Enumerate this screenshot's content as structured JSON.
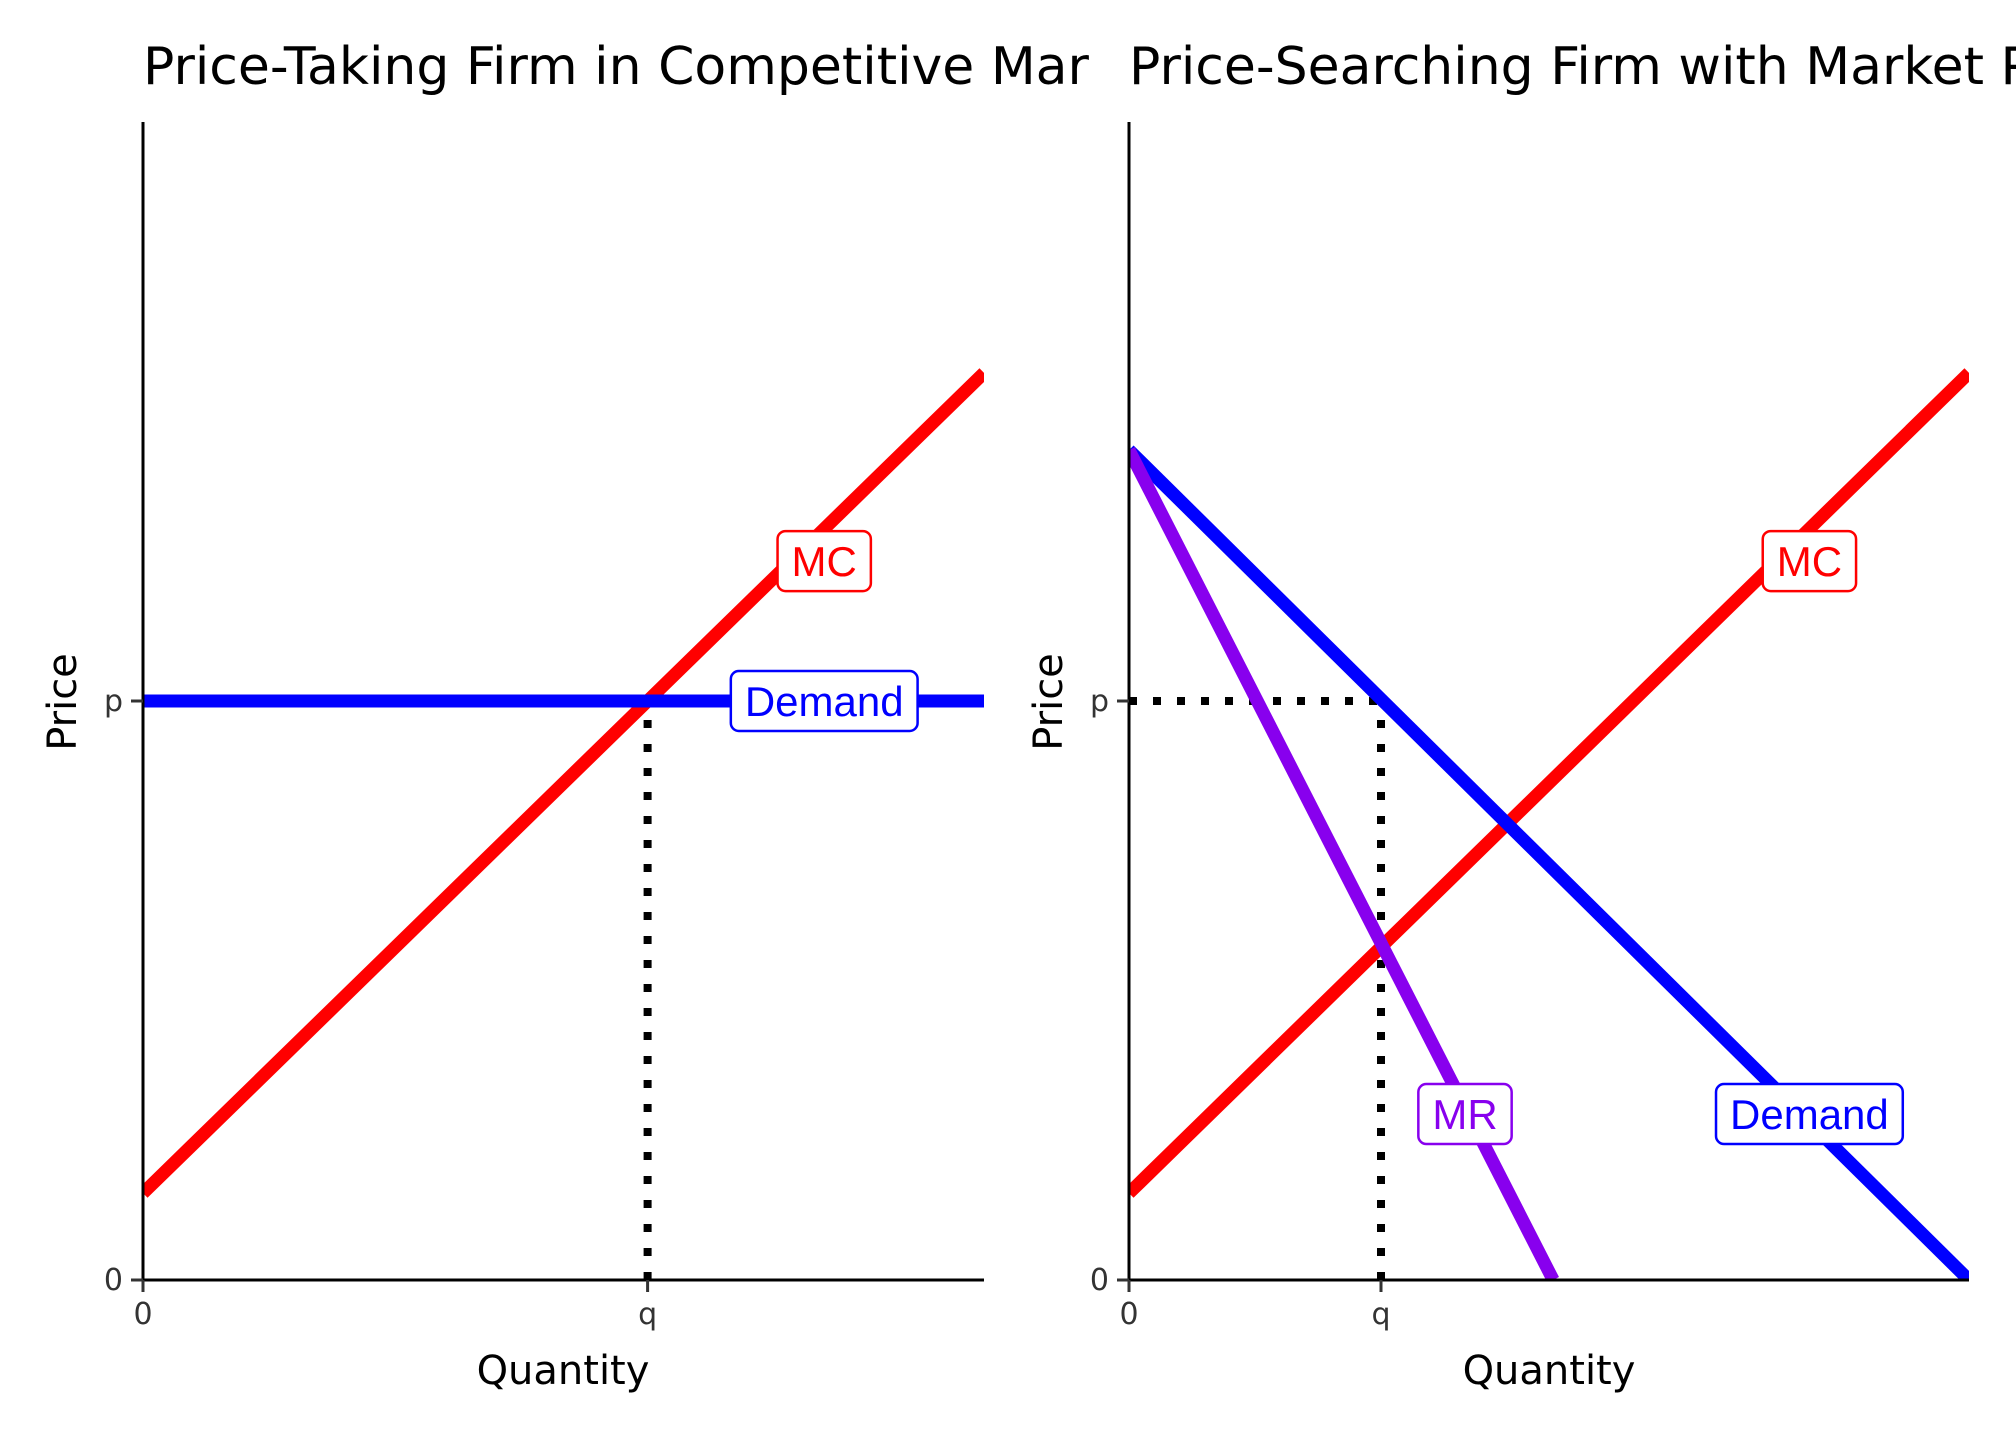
{
  "chart_data": [
    {
      "type": "line",
      "title": "Price-Taking Firm in Competitive Mar",
      "xlabel": "Quantity",
      "ylabel": "Price",
      "xlim": [
        0,
        10
      ],
      "ylim": [
        0,
        12
      ],
      "x_ticks": [
        {
          "value": 0,
          "label": "0"
        },
        {
          "value": 6,
          "label": "q"
        }
      ],
      "y_ticks": [
        {
          "value": 0,
          "label": "0"
        },
        {
          "value": 6,
          "label": "p"
        }
      ],
      "grid": false,
      "series": [
        {
          "name": "MC",
          "color": "#ff0000",
          "x": [
            0,
            10
          ],
          "y": [
            0.9,
            9.4
          ]
        },
        {
          "name": "Demand",
          "color": "#0000ff",
          "x": [
            0,
            10
          ],
          "y": [
            6,
            6
          ]
        }
      ],
      "labels": [
        {
          "text": "MC",
          "color": "#ff0000",
          "x": 8.1,
          "y": 7.45
        },
        {
          "text": "Demand",
          "color": "#0000ff",
          "x": 8.1,
          "y": 6.0
        }
      ],
      "reference_lines": [
        {
          "style": "dotted",
          "color": "#000000",
          "x": [
            6,
            6
          ],
          "y": [
            0,
            6
          ]
        }
      ]
    },
    {
      "type": "line",
      "title": "Price-Searching Firm with Market Pow",
      "xlabel": "Quantity",
      "ylabel": "Price",
      "xlim": [
        0,
        10
      ],
      "ylim": [
        0,
        12
      ],
      "x_ticks": [
        {
          "value": 0,
          "label": "0"
        },
        {
          "value": 3,
          "label": "q"
        }
      ],
      "y_ticks": [
        {
          "value": 0,
          "label": "0"
        },
        {
          "value": 6,
          "label": "p"
        }
      ],
      "grid": false,
      "series": [
        {
          "name": "MC",
          "color": "#ff0000",
          "x": [
            0,
            10
          ],
          "y": [
            0.9,
            9.4
          ]
        },
        {
          "name": "Demand",
          "color": "#0000ff",
          "x": [
            0,
            10
          ],
          "y": [
            8.6,
            0
          ]
        },
        {
          "name": "MR",
          "color": "#8800ee",
          "x": [
            0,
            5.05
          ],
          "y": [
            8.6,
            0
          ]
        }
      ],
      "labels": [
        {
          "text": "MC",
          "color": "#ff0000",
          "x": 8.1,
          "y": 7.45
        },
        {
          "text": "MR",
          "color": "#8800ee",
          "x": 4.0,
          "y": 1.72
        },
        {
          "text": "Demand",
          "color": "#0000ff",
          "x": 8.1,
          "y": 1.72
        }
      ],
      "reference_lines": [
        {
          "style": "dotted",
          "color": "#000000",
          "x": [
            0,
            3
          ],
          "y": [
            6,
            6
          ]
        },
        {
          "style": "dotted",
          "color": "#000000",
          "x": [
            3,
            3
          ],
          "y": [
            0,
            6
          ]
        }
      ]
    }
  ]
}
